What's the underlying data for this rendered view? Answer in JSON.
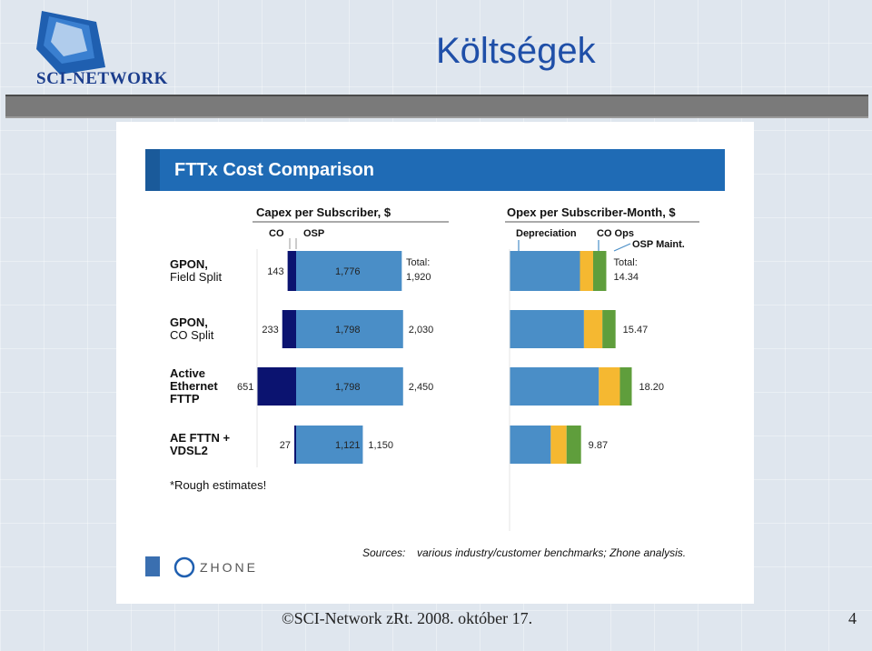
{
  "slide": {
    "title": "Költségek",
    "logo_text": "SCI-NETWORK",
    "footer": "©SCI-Network zRt. 2008. október 17.",
    "page_number": "4"
  },
  "chart_data": {
    "type": "bar",
    "title": "FTTx Cost Comparison",
    "capex": {
      "title": "Capex per Subscriber, $",
      "segments": [
        "CO",
        "OSP"
      ],
      "total_label": "Total:",
      "colors": {
        "CO": "#0b1370",
        "OSP": "#4a8ec7"
      }
    },
    "opex": {
      "title": "Opex per Subscriber-Month, $",
      "segments": [
        "Depreciation",
        "CO Ops",
        "OSP Maint."
      ],
      "total_label": "Total:",
      "colors": {
        "Depreciation": "#4a8ec7",
        "CO Ops": "#f5b831",
        "OSP Maint.": "#5f9e3c"
      }
    },
    "rows": [
      {
        "label": [
          "GPON,",
          "Field Split"
        ],
        "bold": [
          true,
          false
        ],
        "co": 143,
        "co_label": "143",
        "osp": 1776,
        "osp_label": "1,776",
        "total": 1920,
        "total_label": "1,920",
        "depreciation": 12.3,
        "co_ops": 1.0,
        "osp_maint": 1.0,
        "opex_total": "14.34"
      },
      {
        "label": [
          "GPON,",
          "CO Split"
        ],
        "bold": [
          true,
          false
        ],
        "co": 233,
        "co_label": "233",
        "osp": 1798,
        "osp_label": "1,798",
        "total": 2030,
        "total_label": "2,030",
        "depreciation": 13.0,
        "co_ops": 1.4,
        "osp_maint": 1.0,
        "opex_total": "15.47"
      },
      {
        "label": [
          "Active",
          "Ethernet",
          "FTTP"
        ],
        "bold": [
          true,
          true,
          true
        ],
        "co": 651,
        "co_label": "651",
        "osp": 1798,
        "osp_label": "1,798",
        "total": 2450,
        "total_label": "2,450",
        "depreciation": 15.6,
        "co_ops": 1.6,
        "osp_maint": 0.9,
        "opex_total": "18.20"
      },
      {
        "label": [
          "AE FTTN +",
          "VDSL2"
        ],
        "bold": [
          true,
          true
        ],
        "co": 27,
        "co_label": "27",
        "osp": 1121,
        "osp_label": "1,121",
        "total": 1150,
        "total_label": "1,150",
        "depreciation": 7.2,
        "co_ops": 1.2,
        "osp_maint": 1.1,
        "opex_total": "9.87"
      }
    ],
    "note": "*Rough estimates!",
    "sources_label": "Sources:",
    "sources": "various industry/customer benchmarks; Zhone analysis.",
    "brand": "ZHONE"
  }
}
